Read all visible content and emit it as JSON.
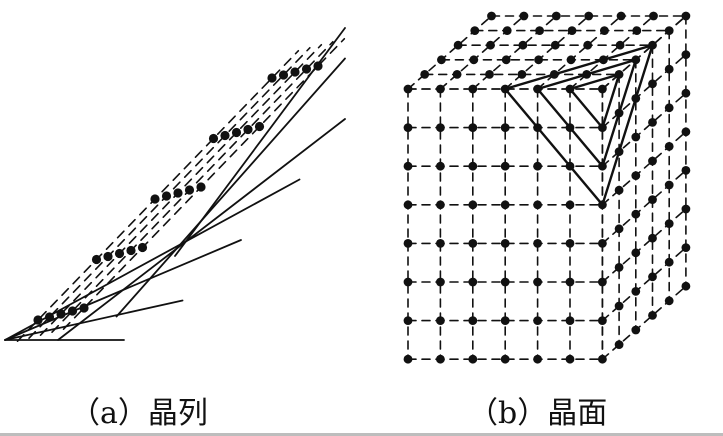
{
  "panels": [
    {
      "id": "a",
      "caption": "（a）晶列"
    },
    {
      "id": "b",
      "caption": "（b）晶面"
    }
  ],
  "colors": {
    "ink": "#111111",
    "background": "#ffffff",
    "footer": "#bdbdbd"
  },
  "lattice_a": {
    "rows": 5,
    "columns": 5
  },
  "lattice_b": {
    "front_rows": 8,
    "front_columns": 7,
    "depth_layers": 6
  }
}
